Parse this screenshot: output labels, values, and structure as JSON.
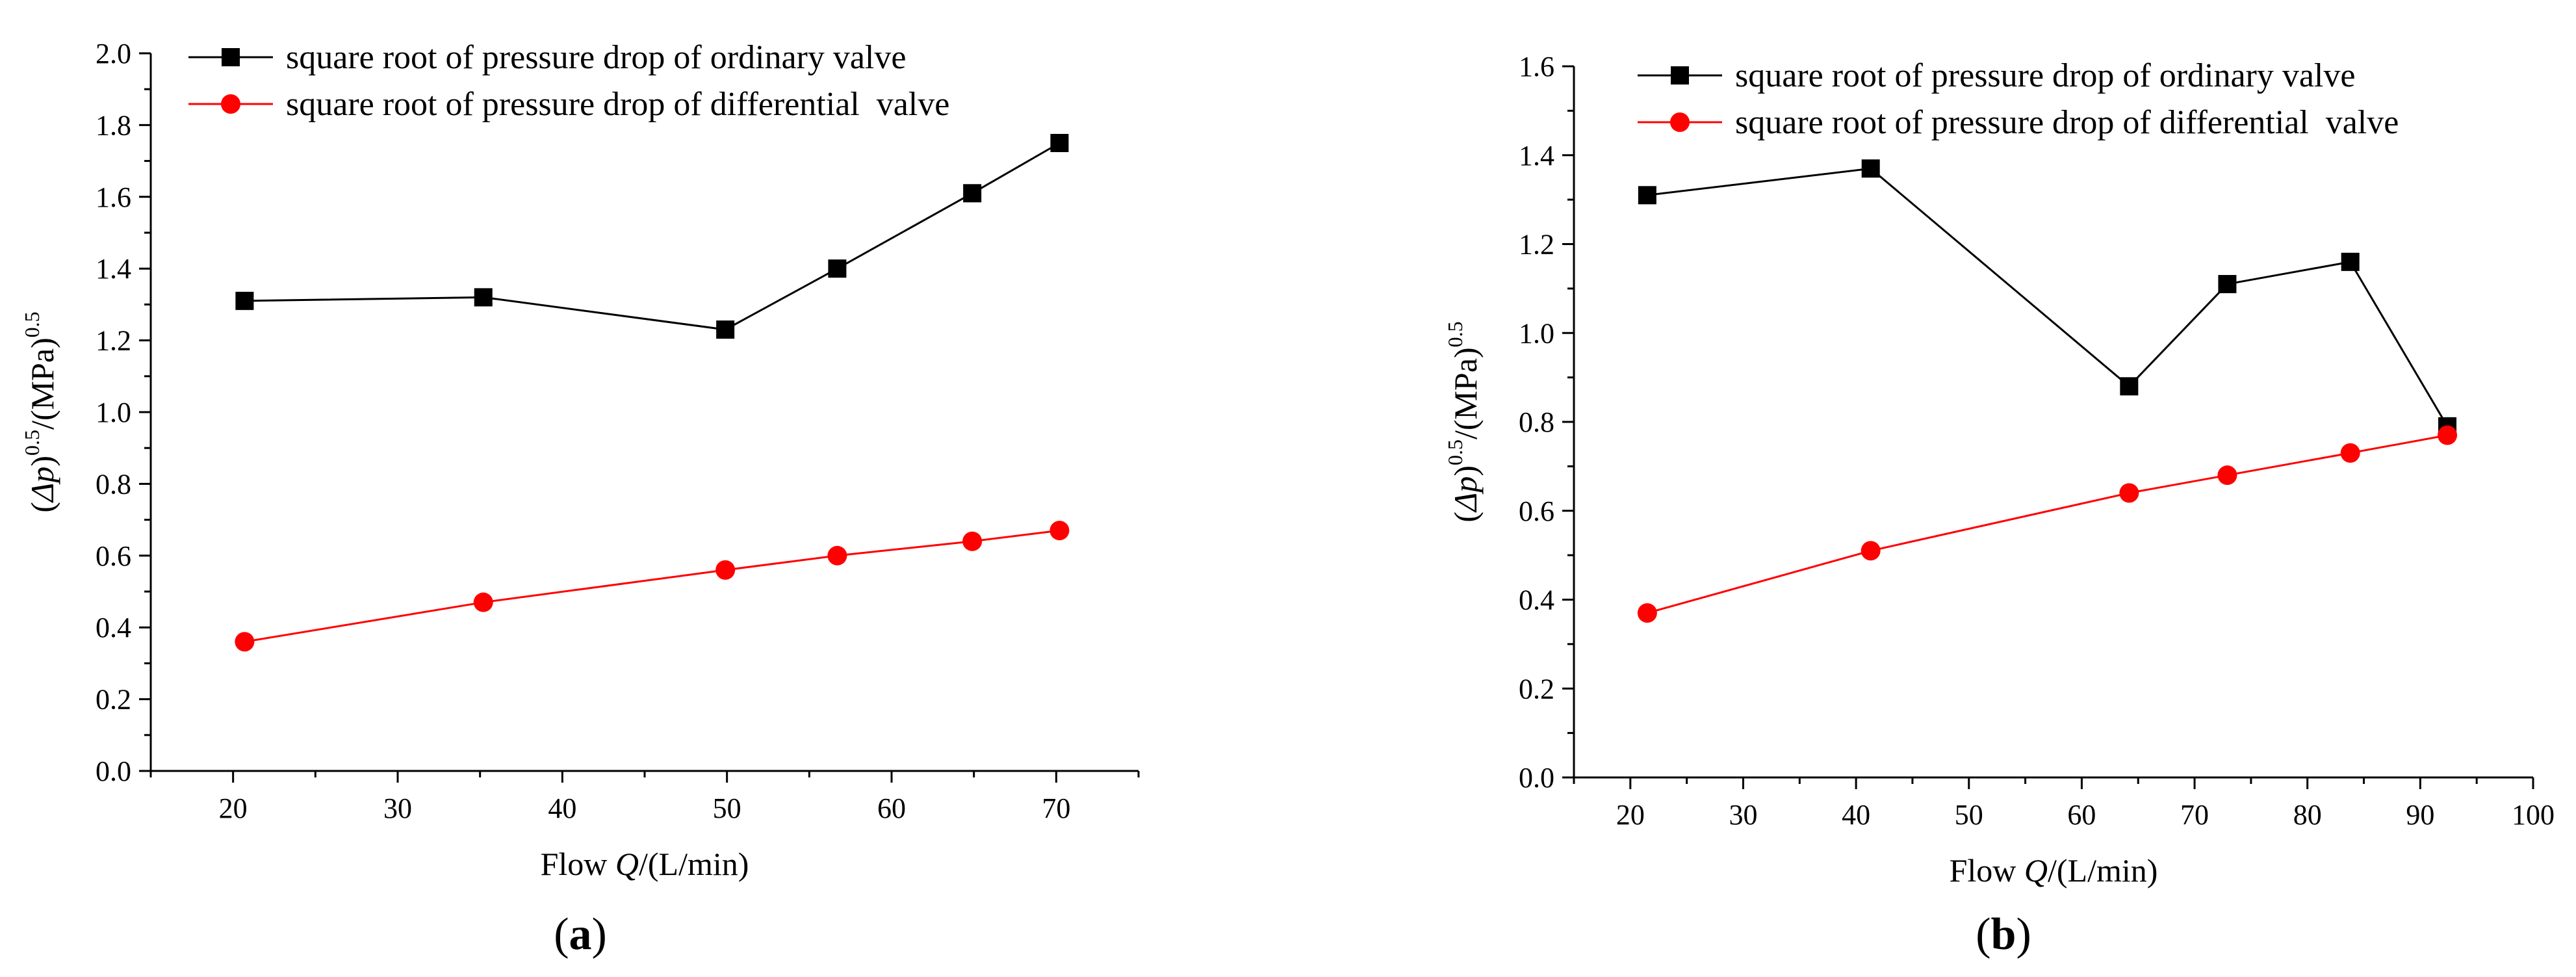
{
  "chart_data": [
    {
      "type": "line",
      "panel_label": "(a)",
      "panel_letter": "a",
      "xlabel_prefix": "Flow ",
      "xlabel_var": "Q",
      "xlabel_suffix": "/(L/min)",
      "ylabel": "(Δp)^0.5/(MPa)^0.5",
      "xlim": [
        15,
        75
      ],
      "ylim": [
        0,
        2.0
      ],
      "xticks": [
        20,
        30,
        40,
        50,
        60,
        70
      ],
      "yticks": [
        0.0,
        0.2,
        0.4,
        0.6,
        0.8,
        1.0,
        1.2,
        1.4,
        1.6,
        1.8,
        2.0
      ],
      "series": [
        {
          "name": "square root of pressure drop of ordinary valve",
          "color": "#000000",
          "marker": "square",
          "x": [
            20.7,
            35.2,
            49.9,
            56.7,
            64.9,
            70.2
          ],
          "y": [
            1.31,
            1.32,
            1.23,
            1.4,
            1.61,
            1.75
          ]
        },
        {
          "name": "square root of pressure drop of differential  valve",
          "color": "#ff0000",
          "marker": "circle",
          "x": [
            20.7,
            35.2,
            49.9,
            56.7,
            64.9,
            70.2
          ],
          "y": [
            0.36,
            0.47,
            0.56,
            0.6,
            0.64,
            0.67
          ]
        }
      ]
    },
    {
      "type": "line",
      "panel_label": "(b)",
      "panel_letter": "b",
      "xlabel_prefix": "Flow ",
      "xlabel_var": "Q",
      "xlabel_suffix": "/(L/min)",
      "ylabel": "(Δp)^0.5/(MPa)^0.5",
      "xlim": [
        15,
        100
      ],
      "ylim": [
        0,
        1.6
      ],
      "xticks": [
        20,
        30,
        40,
        50,
        60,
        70,
        80,
        90,
        100
      ],
      "yticks": [
        0.0,
        0.2,
        0.4,
        0.6,
        0.8,
        1.0,
        1.2,
        1.4,
        1.6
      ],
      "series": [
        {
          "name": "square root of pressure drop of ordinary valve",
          "color": "#000000",
          "marker": "square",
          "x": [
            21.5,
            41.3,
            64.2,
            72.9,
            83.8,
            92.4
          ],
          "y": [
            1.31,
            1.37,
            0.88,
            1.11,
            1.16,
            0.79
          ]
        },
        {
          "name": "square root of pressure drop of differential  valve",
          "color": "#ff0000",
          "marker": "circle",
          "x": [
            21.5,
            41.3,
            64.2,
            72.9,
            83.8,
            92.4
          ],
          "y": [
            0.37,
            0.51,
            0.64,
            0.68,
            0.73,
            0.77
          ]
        }
      ]
    }
  ]
}
